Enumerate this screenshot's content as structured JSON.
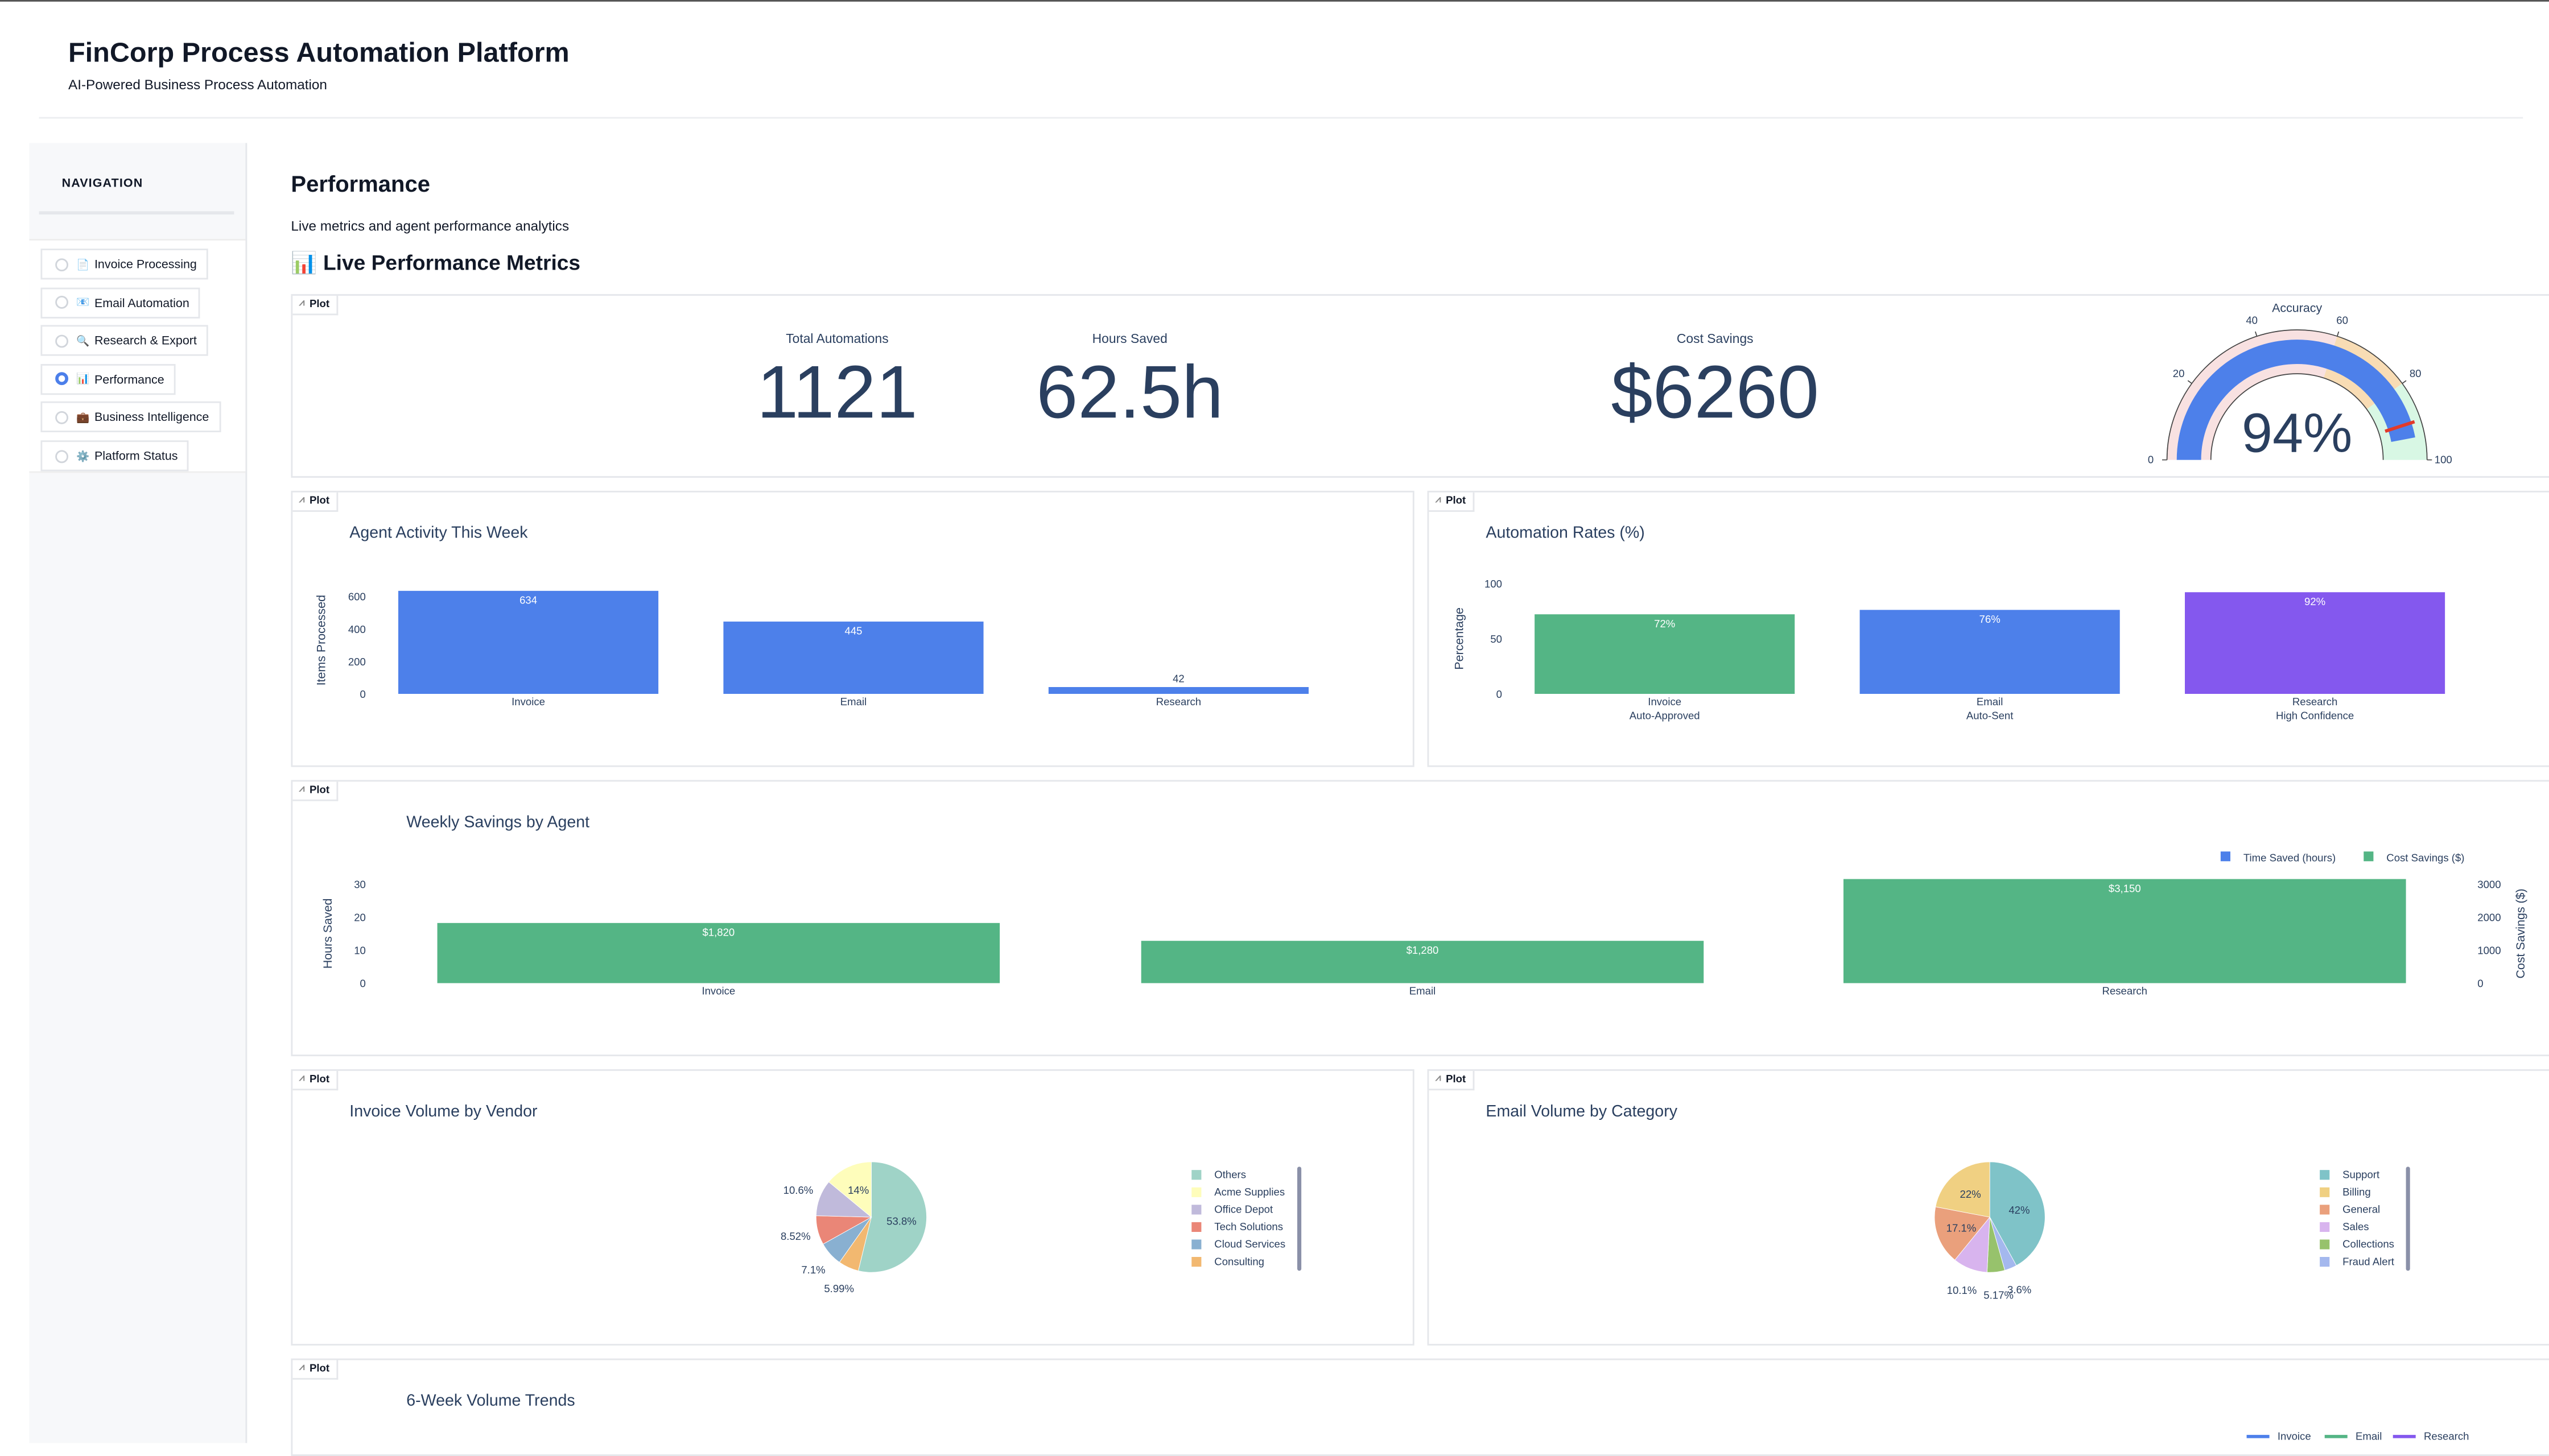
{
  "header": {
    "title": "FinCorp Process Automation Platform",
    "subtitle": "AI-Powered Business Process Automation"
  },
  "sidebar": {
    "title": "NAVIGATION",
    "items": [
      {
        "icon": "📄",
        "label": "Invoice Processing",
        "selected": false
      },
      {
        "icon": "📧",
        "label": "Email Automation",
        "selected": false
      },
      {
        "icon": "🔍",
        "label": "Research & Export",
        "selected": false
      },
      {
        "icon": "📊",
        "label": "Performance",
        "selected": true
      },
      {
        "icon": "💼",
        "label": "Business Intelligence",
        "selected": false
      },
      {
        "icon": "⚙️",
        "label": "Platform Status",
        "selected": false
      }
    ]
  },
  "main": {
    "title": "Performance",
    "subtitle": "Live metrics and agent performance analytics",
    "section_title": "📊 Live Performance Metrics",
    "plot_label": "Plot"
  },
  "indicators": [
    {
      "label": "Total Automations",
      "value": "1121"
    },
    {
      "label": "Hours Saved",
      "value": "62.5h"
    },
    {
      "label": "Cost Savings",
      "value": "$6260"
    }
  ],
  "colors": {
    "blue": "#4d80ea",
    "green": "#54b585",
    "purple": "#8458ee",
    "text": "#2a3f5f"
  },
  "chart_data": [
    {
      "id": "gauge",
      "type": "gauge",
      "title": "Accuracy",
      "value": 94,
      "value_label": "94%",
      "range": [
        0,
        100
      ],
      "ticks": [
        "0",
        "20",
        "40",
        "60",
        "80",
        "100"
      ],
      "threshold": 90,
      "steps": [
        {
          "range": [
            0,
            60
          ],
          "color": "#f8e1e1"
        },
        {
          "range": [
            60,
            80
          ],
          "color": "#f8dcb4"
        },
        {
          "range": [
            80,
            100
          ],
          "color": "#d8f7e4"
        }
      ],
      "bar_color": "#4d80ea"
    },
    {
      "id": "agent",
      "type": "bar",
      "title": "Agent Activity This Week",
      "ylabel": "Items Processed",
      "categories": [
        [
          "Invoice"
        ],
        [
          "Email"
        ],
        [
          "Research"
        ]
      ],
      "values": [
        634,
        445,
        42
      ],
      "labels": [
        "634",
        "445",
        "42"
      ],
      "colors": [
        "#4d80ea",
        "#4d80ea",
        "#4d80ea"
      ],
      "ylim": [
        0,
        660
      ],
      "yticks": [
        0,
        200,
        400,
        600
      ]
    },
    {
      "id": "rates",
      "type": "bar",
      "title": "Automation Rates (%)",
      "ylabel": "Percentage",
      "categories": [
        [
          "Invoice",
          "Auto-Approved"
        ],
        [
          "Email",
          "Auto-Sent"
        ],
        [
          "Research",
          "High Confidence"
        ]
      ],
      "values": [
        72,
        76,
        92
      ],
      "labels": [
        "72%",
        "76%",
        "92%"
      ],
      "colors": [
        "#54b585",
        "#4d80ea",
        "#8458ee"
      ],
      "ylim": [
        0,
        100
      ],
      "yticks": [
        0,
        50,
        100
      ]
    },
    {
      "id": "savings",
      "type": "bar",
      "title": "Weekly Savings by Agent",
      "ylabel": "Hours Saved",
      "y2label": "Cost Savings ($)",
      "categories": [
        [
          "Invoice"
        ],
        [
          "Email"
        ],
        [
          "Research"
        ]
      ],
      "values": [
        1820,
        1280,
        3150
      ],
      "labels": [
        "$1,820",
        "$1,280",
        "$3,150"
      ],
      "colors": [
        "#54b585",
        "#54b585",
        "#54b585"
      ],
      "ylim": [
        0,
        3000
      ],
      "yticks": [
        0,
        10,
        20,
        30
      ],
      "y2ticks": [
        0,
        1000,
        2000,
        3000
      ],
      "legend": [
        {
          "name": "Time Saved (hours)",
          "color": "#4d80ea"
        },
        {
          "name": "Cost Savings ($)",
          "color": "#54b585"
        }
      ],
      "legend_position": "top-right"
    },
    {
      "id": "vendor",
      "type": "pie",
      "title": "Invoice Volume by Vendor",
      "labels": [
        "Others",
        "Acme Supplies",
        "Office Depot",
        "Tech Solutions",
        "Cloud Services",
        "Consulting"
      ],
      "values": [
        53.8,
        14,
        10.6,
        8.52,
        7.1,
        5.99
      ],
      "text": [
        "53.8%",
        "14%",
        "10.6%",
        "8.52%",
        "7.1%",
        "5.99%"
      ],
      "colors": [
        "#9fd3c7",
        "#fefdbb",
        "#c0badb",
        "#ea8677",
        "#89b0d1",
        "#f2b870"
      ],
      "legend_position": "right"
    },
    {
      "id": "email",
      "type": "pie",
      "title": "Email Volume by Category",
      "labels": [
        "Support",
        "Billing",
        "General",
        "Sales",
        "Collections",
        "Fraud Alert"
      ],
      "values": [
        42,
        22,
        17.1,
        10.1,
        5.17,
        3.6
      ],
      "text": [
        "42%",
        "22%",
        "17.1%",
        "10.1%",
        "5.17%",
        "3.6%"
      ],
      "colors": [
        "#7fc3c8",
        "#f0d082",
        "#eaa07c",
        "#d8b4ee",
        "#97c26c",
        "#a4b8ee"
      ],
      "legend_position": "right"
    },
    {
      "id": "trends",
      "type": "line",
      "title": "6-Week Volume Trends",
      "legend": [
        {
          "name": "Invoice",
          "color": "#4d80ea"
        },
        {
          "name": "Email",
          "color": "#54b585"
        },
        {
          "name": "Research",
          "color": "#8458ee"
        }
      ],
      "legend_position": "bottom-right"
    }
  ]
}
